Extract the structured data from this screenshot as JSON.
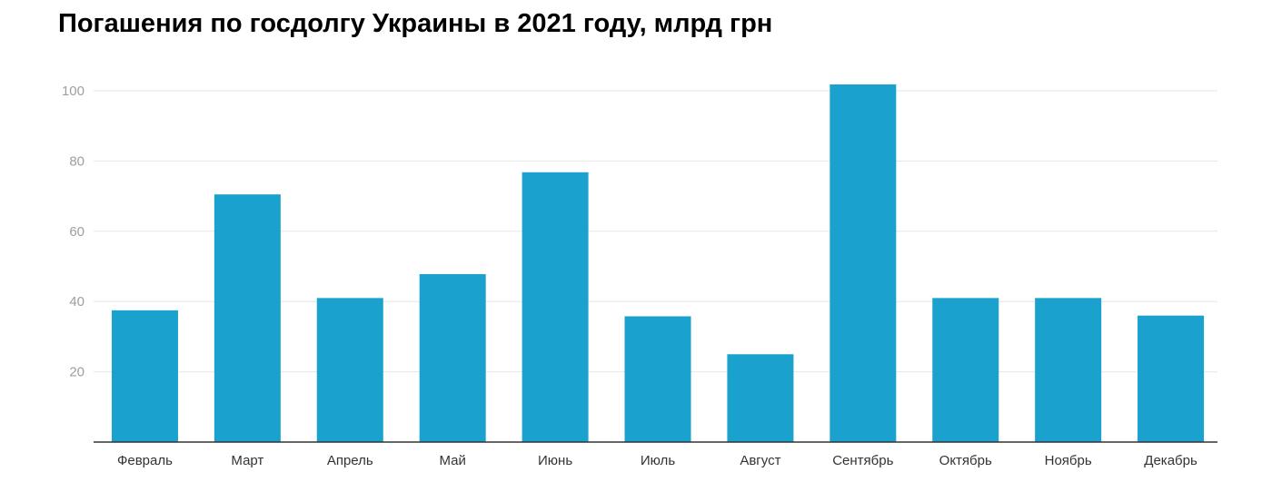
{
  "chart_data": {
    "type": "bar",
    "title": "Погашения по госдолгу Украины в 2021 году, млрд грн",
    "xlabel": "",
    "ylabel": "",
    "categories": [
      "Февраль",
      "Март",
      "Апрель",
      "Май",
      "Июнь",
      "Июль",
      "Август",
      "Сентябрь",
      "Октябрь",
      "Ноябрь",
      "Декабрь"
    ],
    "values": [
      37.5,
      70.5,
      41,
      47.8,
      76.8,
      35.8,
      25,
      101.8,
      41,
      41,
      36
    ],
    "ylim": [
      0,
      100
    ],
    "yticks": [
      20,
      40,
      60,
      80,
      100
    ],
    "grid": true,
    "legend": "none",
    "colors": {
      "bar": "#1ba1cd",
      "grid": "#e6e6e6",
      "axis": "#333333"
    }
  }
}
